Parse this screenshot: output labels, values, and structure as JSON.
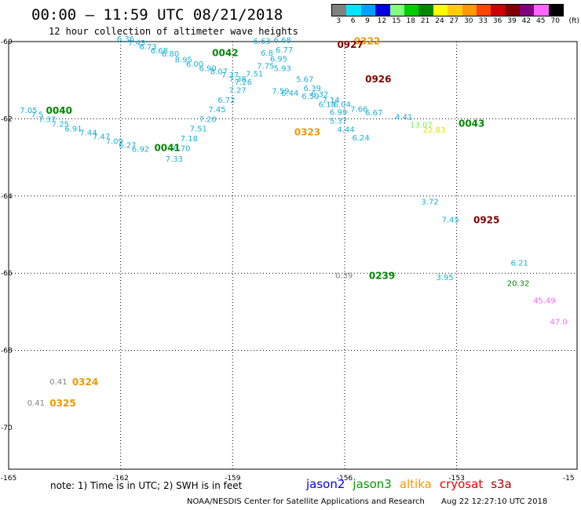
{
  "title": "00:00 – 11:59 UTC 08/21/2018",
  "subtitle": "12 hour collection of altimeter wave heights",
  "colorbar": {
    "labels": [
      "3",
      "6",
      "9",
      "12",
      "15",
      "18",
      "21",
      "24",
      "27",
      "30",
      "33",
      "36",
      "39",
      "42",
      "45",
      "70"
    ],
    "colors": [
      "#808080",
      "#00e5ff",
      "#00a0ff",
      "#0000e0",
      "#80ff80",
      "#00cc00",
      "#008800",
      "#ffff00",
      "#ffcc00",
      "#ff9900",
      "#ff4400",
      "#cc0000",
      "#800000",
      "#800080",
      "#ff66ff",
      "#000000"
    ],
    "unit": "(ft)"
  },
  "axes": {
    "lon_ticks": [
      "-165",
      "-162",
      "-159",
      "-156",
      "-153",
      "-15"
    ],
    "lat_ticks": [
      "-60",
      "-62",
      "-64",
      "-66",
      "-68",
      "-70"
    ]
  },
  "observations": [
    {
      "text": "6.36",
      "lon": -162.1,
      "lat": -59.92,
      "color": "#1ab0d8"
    },
    {
      "text": "7.43",
      "lon": -161.8,
      "lat": -60.02,
      "color": "#1ab0d8"
    },
    {
      "text": "6.73",
      "lon": -161.5,
      "lat": -60.12,
      "color": "#1ab0d8"
    },
    {
      "text": "6.68",
      "lon": -161.2,
      "lat": -60.22,
      "color": "#1ab0d8"
    },
    {
      "text": "6.80",
      "lon": -160.9,
      "lat": -60.3,
      "color": "#1ab0d8"
    },
    {
      "text": "8.95",
      "lon": -160.55,
      "lat": -60.46,
      "color": "#1ab0d8"
    },
    {
      "text": "6.00",
      "lon": -160.25,
      "lat": -60.57,
      "color": "#1ab0d8"
    },
    {
      "text": "6.90",
      "lon": -159.9,
      "lat": -60.68,
      "color": "#1ab0d8"
    },
    {
      "text": "8.07",
      "lon": -159.6,
      "lat": -60.76,
      "color": "#1ab0d8"
    },
    {
      "text": "7.37",
      "lon": -159.3,
      "lat": -60.85,
      "color": "#1ab0d8"
    },
    {
      "text": "7.38",
      "lon": -159.1,
      "lat": -60.96,
      "color": "#1ab0d8"
    },
    {
      "text": "7.26",
      "lon": -158.95,
      "lat": -61.04,
      "color": "#1ab0d8"
    },
    {
      "text": "7.27",
      "lon": -159.1,
      "lat": -61.25,
      "color": "#1ab0d8"
    },
    {
      "text": "6.72",
      "lon": -159.4,
      "lat": -61.5,
      "color": "#1ab0d8"
    },
    {
      "text": "7.45",
      "lon": -159.65,
      "lat": -61.75,
      "color": "#1ab0d8"
    },
    {
      "text": "7.20",
      "lon": -159.9,
      "lat": -62.0,
      "color": "#1ab0d8"
    },
    {
      "text": "7.51",
      "lon": -160.15,
      "lat": -62.25,
      "color": "#1ab0d8"
    },
    {
      "text": "7.18",
      "lon": -160.4,
      "lat": -62.5,
      "color": "#1ab0d8"
    },
    {
      "text": "6.70",
      "lon": -160.6,
      "lat": -62.75,
      "color": "#1ab0d8"
    },
    {
      "text": "7.33",
      "lon": -160.8,
      "lat": -63.03,
      "color": "#1ab0d8"
    },
    {
      "text": "7.59",
      "lon": -157.95,
      "lat": -61.27,
      "color": "#1ab0d8"
    },
    {
      "text": "6.44",
      "lon": -157.7,
      "lat": -61.32,
      "color": "#1ab0d8"
    },
    {
      "text": "6.63",
      "lon": -158.45,
      "lat": -59.98,
      "color": "#1ab0d8"
    },
    {
      "text": "6.68",
      "lon": -157.9,
      "lat": -59.95,
      "color": "#1ab0d8"
    },
    {
      "text": "6.77",
      "lon": -157.85,
      "lat": -60.2,
      "color": "#1ab0d8"
    },
    {
      "text": "6.8",
      "lon": -158.25,
      "lat": -60.28,
      "color": "#1ab0d8"
    },
    {
      "text": "6.95",
      "lon": -158.0,
      "lat": -60.44,
      "color": "#1ab0d8"
    },
    {
      "text": "7.75",
      "lon": -158.35,
      "lat": -60.62,
      "color": "#1ab0d8"
    },
    {
      "text": "5.93",
      "lon": -157.9,
      "lat": -60.68,
      "color": "#1ab0d8"
    },
    {
      "text": "7.51",
      "lon": -158.65,
      "lat": -60.82,
      "color": "#1ab0d8"
    },
    {
      "text": "5.67",
      "lon": -157.3,
      "lat": -60.97,
      "color": "#1ab0d8"
    },
    {
      "text": "6.39",
      "lon": -157.1,
      "lat": -61.2,
      "color": "#1ab0d8"
    },
    {
      "text": "6.32",
      "lon": -156.9,
      "lat": -61.35,
      "color": "#1ab0d8"
    },
    {
      "text": "6.50",
      "lon": -157.15,
      "lat": -61.4,
      "color": "#1ab0d8"
    },
    {
      "text": "7.14",
      "lon": -156.6,
      "lat": -61.5,
      "color": "#1ab0d8"
    },
    {
      "text": "6.18",
      "lon": -156.7,
      "lat": -61.62,
      "color": "#1ab0d8"
    },
    {
      "text": "6.04",
      "lon": -156.3,
      "lat": -61.62,
      "color": "#1ab0d8"
    },
    {
      "text": "6.99",
      "lon": -156.4,
      "lat": -61.82,
      "color": "#1ab0d8"
    },
    {
      "text": "7.66",
      "lon": -155.85,
      "lat": -61.74,
      "color": "#1ab0d8"
    },
    {
      "text": "6.67",
      "lon": -155.45,
      "lat": -61.83,
      "color": "#1ab0d8"
    },
    {
      "text": "5.37",
      "lon": -156.4,
      "lat": -62.04,
      "color": "#1ab0d8"
    },
    {
      "text": "4.44",
      "lon": -156.2,
      "lat": -62.27,
      "color": "#1ab0d8"
    },
    {
      "text": "6.24",
      "lon": -155.8,
      "lat": -62.48,
      "color": "#1ab0d8"
    },
    {
      "text": "4.41",
      "lon": -154.65,
      "lat": -61.94,
      "color": "#1ab0d8"
    },
    {
      "text": "13.07",
      "lon": -154.25,
      "lat": -62.14,
      "color": "#80ee60"
    },
    {
      "text": "22.83",
      "lon": -153.9,
      "lat": -62.28,
      "color": "#e0e000"
    },
    {
      "text": "7.05",
      "lon": -164.7,
      "lat": -61.77,
      "color": "#1ab0d8"
    },
    {
      "text": "7.5",
      "lon": -164.4,
      "lat": -61.88,
      "color": "#1ab0d8"
    },
    {
      "text": "7.37",
      "lon": -164.2,
      "lat": -62.0,
      "color": "#1ab0d8"
    },
    {
      "text": "7.25",
      "lon": -163.85,
      "lat": -62.12,
      "color": "#1ab0d8"
    },
    {
      "text": "6.91",
      "lon": -163.5,
      "lat": -62.25,
      "color": "#1ab0d8"
    },
    {
      "text": "7.44",
      "lon": -163.1,
      "lat": -62.35,
      "color": "#1ab0d8"
    },
    {
      "text": "7.47",
      "lon": -162.75,
      "lat": -62.45,
      "color": "#1ab0d8"
    },
    {
      "text": "7.09",
      "lon": -162.4,
      "lat": -62.57,
      "color": "#1ab0d8"
    },
    {
      "text": "6.27",
      "lon": -162.05,
      "lat": -62.67,
      "color": "#1ab0d8"
    },
    {
      "text": "6.92",
      "lon": -161.7,
      "lat": -62.77,
      "color": "#1ab0d8"
    },
    {
      "text": "3.72",
      "lon": -153.95,
      "lat": -64.14,
      "color": "#1ab0d8"
    },
    {
      "text": "7.45",
      "lon": -153.4,
      "lat": -64.6,
      "color": "#1ab0d8"
    },
    {
      "text": "6.21",
      "lon": -151.55,
      "lat": -65.72,
      "color": "#1ab0d8"
    },
    {
      "text": "3.95",
      "lon": -153.55,
      "lat": -66.1,
      "color": "#1ab0d8"
    },
    {
      "text": "20.32",
      "lon": -151.65,
      "lat": -66.25,
      "color": "#008800"
    },
    {
      "text": "45.49",
      "lon": -150.95,
      "lat": -66.7,
      "color": "#ff66ff"
    },
    {
      "text": "47.0",
      "lon": -150.5,
      "lat": -67.25,
      "color": "#ff66ff"
    },
    {
      "text": "0.39",
      "lon": -156.25,
      "lat": -66.05,
      "color": "#808080"
    },
    {
      "text": "0.41",
      "lon": -163.9,
      "lat": -68.8,
      "color": "#808080"
    },
    {
      "text": "0.41",
      "lon": -164.5,
      "lat": -69.35,
      "color": "#808080"
    }
  ],
  "time_labels": [
    {
      "text": "0322",
      "lon": -155.75,
      "lat": -59.97,
      "color": "#ee9900"
    },
    {
      "text": "0927",
      "lon": -156.2,
      "lat": -60.06,
      "color": "#800000"
    },
    {
      "text": "0042",
      "lon": -159.55,
      "lat": -60.27,
      "color": "#008800"
    },
    {
      "text": "0926",
      "lon": -155.45,
      "lat": -60.96,
      "color": "#800000"
    },
    {
      "text": "0040",
      "lon": -164.0,
      "lat": -61.77,
      "color": "#008800"
    },
    {
      "text": "0043",
      "lon": -152.95,
      "lat": -62.1,
      "color": "#008800"
    },
    {
      "text": "0323",
      "lon": -157.35,
      "lat": -62.33,
      "color": "#ee9900"
    },
    {
      "text": "0041",
      "lon": -161.1,
      "lat": -62.73,
      "color": "#008800"
    },
    {
      "text": "0925",
      "lon": -152.55,
      "lat": -64.6,
      "color": "#800000"
    },
    {
      "text": "0239",
      "lon": -155.35,
      "lat": -66.05,
      "color": "#008800"
    },
    {
      "text": "0324",
      "lon": -163.3,
      "lat": -68.8,
      "color": "#ee9900"
    },
    {
      "text": "0325",
      "lon": -163.9,
      "lat": -69.35,
      "color": "#ee9900"
    }
  ],
  "note": "note:  1) Time is in UTC;  2) SWH is in feet",
  "legend": [
    {
      "text": "jason2",
      "color": "#0000ee"
    },
    {
      "text": "jason3",
      "color": "#009900"
    },
    {
      "text": "altika",
      "color": "#ff9900"
    },
    {
      "text": "cryosat",
      "color": "#ee0000"
    },
    {
      "text": "s3a",
      "color": "#aa0000"
    }
  ],
  "footer": {
    "credit": "NOAA/NESDIS Center for Satellite Applications and Research",
    "timestamp": "Aug 22 12:27:10 UTC 2018"
  }
}
